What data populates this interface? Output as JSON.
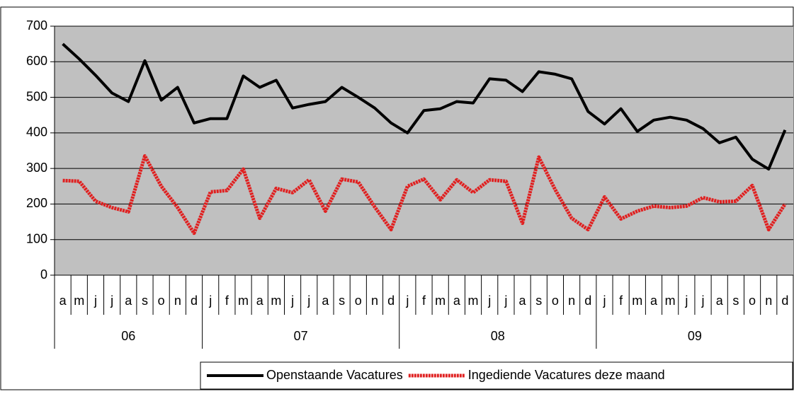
{
  "chart_data": {
    "type": "line",
    "groups": [
      {
        "label": "06",
        "categories": [
          "a",
          "m",
          "j",
          "j",
          "a",
          "s",
          "o",
          "n",
          "d"
        ]
      },
      {
        "label": "07",
        "categories": [
          "j",
          "f",
          "m",
          "a",
          "m",
          "j",
          "j",
          "a",
          "s",
          "o",
          "n",
          "d"
        ]
      },
      {
        "label": "08",
        "categories": [
          "j",
          "f",
          "m",
          "a",
          "m",
          "j",
          "j",
          "a",
          "s",
          "o",
          "n",
          "d"
        ]
      },
      {
        "label": "09",
        "categories": [
          "j",
          "f",
          "m",
          "a",
          "m",
          "j",
          "j",
          "a",
          "s",
          "o",
          "n",
          "d"
        ]
      }
    ],
    "series": [
      {
        "name": "Openstaande Vacatures",
        "color": "#000000",
        "values": [
          650,
          608,
          562,
          512,
          488,
          603,
          492,
          528,
          428,
          440,
          440,
          560,
          528,
          548,
          470,
          480,
          488,
          528,
          500,
          470,
          428,
          400,
          463,
          468,
          488,
          484,
          552,
          548,
          516,
          572,
          565,
          552,
          460,
          425,
          468,
          404,
          436,
          444,
          436,
          412,
          372,
          388,
          326,
          298,
          408
        ]
      },
      {
        "name": "Ingediende Vacatures deze maand",
        "color": "#e02020",
        "values": [
          266,
          264,
          208,
          190,
          178,
          335,
          250,
          190,
          118,
          234,
          238,
          298,
          160,
          244,
          232,
          268,
          180,
          270,
          262,
          192,
          128,
          250,
          270,
          212,
          268,
          232,
          268,
          264,
          146,
          332,
          240,
          160,
          128,
          220,
          158,
          180,
          194,
          190,
          194,
          218,
          206,
          208,
          252,
          128,
          200
        ]
      }
    ],
    "ylim": [
      0,
      700
    ],
    "yticks": [
      0,
      100,
      200,
      300,
      400,
      500,
      600,
      700
    ],
    "grid": true,
    "legend": "bottom-right"
  }
}
